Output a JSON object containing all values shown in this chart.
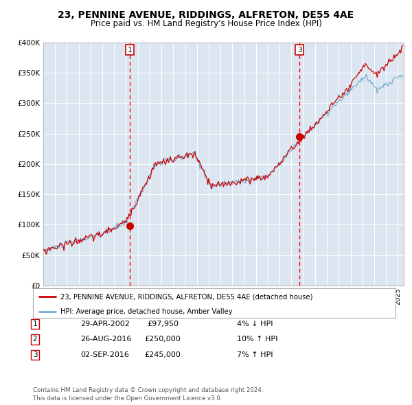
{
  "title": "23, PENNINE AVENUE, RIDDINGS, ALFRETON, DE55 4AE",
  "subtitle": "Price paid vs. HM Land Registry's House Price Index (HPI)",
  "title_fontsize": 10,
  "subtitle_fontsize": 8.5,
  "background_color": "#dce6f1",
  "fig_bg_color": "#ffffff",
  "line1_color": "#cc0000",
  "line2_color": "#7aabcc",
  "ylim": [
    0,
    400000
  ],
  "yticks": [
    0,
    50000,
    100000,
    150000,
    200000,
    250000,
    300000,
    350000,
    400000
  ],
  "ytick_labels": [
    "£0",
    "£50K",
    "£100K",
    "£150K",
    "£200K",
    "£250K",
    "£300K",
    "£350K",
    "£400K"
  ],
  "sale1_date_num": 2002.33,
  "sale1_price": 97950,
  "sale1_label": "1",
  "sale3_date_num": 2016.67,
  "sale3_price": 245000,
  "sale3_label": "3",
  "legend_line1": "23, PENNINE AVENUE, RIDDINGS, ALFRETON, DE55 4AE (detached house)",
  "legend_line2": "HPI: Average price, detached house, Amber Valley",
  "table_data": [
    [
      "1",
      "29-APR-2002",
      "£97,950",
      "4% ↓ HPI"
    ],
    [
      "2",
      "26-AUG-2016",
      "£250,000",
      "10% ↑ HPI"
    ],
    [
      "3",
      "02-SEP-2016",
      "£245,000",
      "7% ↑ HPI"
    ]
  ],
  "footnote": "Contains HM Land Registry data © Crown copyright and database right 2024.\nThis data is licensed under the Open Government Licence v3.0.",
  "xmin": 1995.0,
  "xmax": 2025.5
}
